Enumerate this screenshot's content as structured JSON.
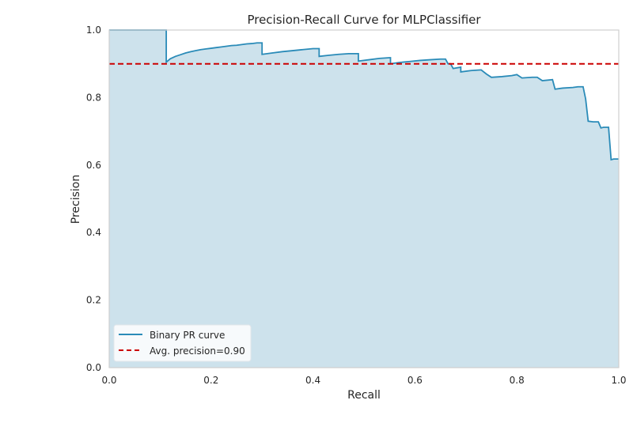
{
  "chart_data": {
    "type": "line",
    "title": "Precision-Recall Curve for MLPClassifier",
    "xlabel": "Recall",
    "ylabel": "Precision",
    "xlim": [
      0,
      1
    ],
    "ylim": [
      0,
      1
    ],
    "xticks": [
      0.0,
      0.2,
      0.4,
      0.6,
      0.8,
      1.0
    ],
    "yticks": [
      0.0,
      0.2,
      0.4,
      0.6,
      0.8,
      1.0
    ],
    "xtick_labels": [
      "0.0",
      "0.2",
      "0.4",
      "0.6",
      "0.8",
      "1.0"
    ],
    "ytick_labels": [
      "0.0",
      "0.2",
      "0.4",
      "0.6",
      "0.8",
      "1.0"
    ],
    "grid": false,
    "legend_position": "lower-left",
    "series": [
      {
        "name": "Binary PR curve",
        "style": "step",
        "filled": true,
        "color": "#2a8bb8",
        "fill_color": "#cde2ec",
        "recall": [
          0.0,
          0.112,
          0.112,
          0.12,
          0.13,
          0.14,
          0.15,
          0.16,
          0.17,
          0.18,
          0.19,
          0.2,
          0.21,
          0.22,
          0.23,
          0.24,
          0.25,
          0.26,
          0.27,
          0.28,
          0.29,
          0.3,
          0.3,
          0.32,
          0.34,
          0.36,
          0.38,
          0.4,
          0.412,
          0.412,
          0.43,
          0.45,
          0.47,
          0.489,
          0.489,
          0.51,
          0.53,
          0.55,
          0.552,
          0.552,
          0.57,
          0.59,
          0.61,
          0.63,
          0.65,
          0.66,
          0.665,
          0.67,
          0.675,
          0.69,
          0.69,
          0.71,
          0.73,
          0.74,
          0.75,
          0.77,
          0.79,
          0.8,
          0.81,
          0.83,
          0.84,
          0.85,
          0.87,
          0.875,
          0.89,
          0.91,
          0.92,
          0.93,
          0.935,
          0.94,
          0.95,
          0.96,
          0.965,
          0.97,
          0.98,
          0.985,
          0.99,
          1.0
        ],
        "precision": [
          1.0,
          1.0,
          0.905,
          0.915,
          0.922,
          0.927,
          0.932,
          0.936,
          0.939,
          0.942,
          0.944,
          0.946,
          0.948,
          0.95,
          0.952,
          0.954,
          0.955,
          0.957,
          0.959,
          0.96,
          0.962,
          0.962,
          0.928,
          0.932,
          0.936,
          0.939,
          0.942,
          0.945,
          0.945,
          0.922,
          0.925,
          0.928,
          0.93,
          0.93,
          0.908,
          0.912,
          0.916,
          0.918,
          0.918,
          0.9,
          0.904,
          0.907,
          0.91,
          0.912,
          0.914,
          0.914,
          0.9,
          0.9,
          0.886,
          0.89,
          0.876,
          0.88,
          0.882,
          0.87,
          0.86,
          0.862,
          0.865,
          0.868,
          0.858,
          0.86,
          0.86,
          0.85,
          0.853,
          0.825,
          0.828,
          0.83,
          0.832,
          0.832,
          0.796,
          0.73,
          0.728,
          0.728,
          0.71,
          0.712,
          0.712,
          0.616,
          0.618,
          0.618
        ]
      },
      {
        "name": "Avg. precision=0.90",
        "style": "dashed",
        "color": "#cc0000",
        "value": 0.9
      }
    ]
  }
}
